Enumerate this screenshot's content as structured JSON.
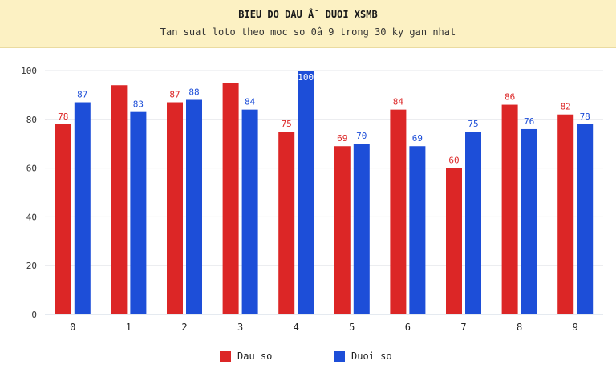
{
  "header": {
    "title": "BIEU DO DAU Â˘ DUOI XSMB",
    "subtitle": "Tan suat loto theo moc so 0â  9 trong 30 ky gan nhat"
  },
  "colors": {
    "header_bg": "#fcf1c3",
    "dau": "#dc2626",
    "duoi": "#1d4ed8",
    "grid": "#e5e7eb"
  },
  "chart_data": {
    "type": "bar",
    "title": "BIEU DO DAU Â˘ DUOI XSMB",
    "subtitle": "Tan suat loto theo moc so 0â  9 trong 30 ky gan nhat",
    "xlabel": "",
    "ylabel": "",
    "categories": [
      "0",
      "1",
      "2",
      "3",
      "4",
      "5",
      "6",
      "7",
      "8",
      "9"
    ],
    "series": [
      {
        "name": "Dau so",
        "color": "#dc2626",
        "values": [
          78,
          94,
          87,
          95,
          75,
          69,
          84,
          60,
          86,
          82
        ],
        "labels": [
          "78",
          "",
          "87",
          "",
          "75",
          "69",
          "84",
          "60",
          "86",
          "82"
        ]
      },
      {
        "name": "Duoi so",
        "color": "#1d4ed8",
        "values": [
          87,
          83,
          88,
          84,
          100,
          70,
          69,
          75,
          76,
          78
        ],
        "labels": [
          "87",
          "83",
          "88",
          "84",
          "100",
          "70",
          "69",
          "75",
          "76",
          "78"
        ]
      }
    ],
    "ylim": [
      0,
      100
    ],
    "yticks": [
      "0",
      "20",
      "40",
      "60",
      "80",
      "100"
    ],
    "grid": true,
    "legend_position": "bottom-center"
  },
  "legend": {
    "items": [
      {
        "label": "Dau so",
        "color": "#dc2626"
      },
      {
        "label": "Duoi so",
        "color": "#1d4ed8"
      }
    ]
  }
}
